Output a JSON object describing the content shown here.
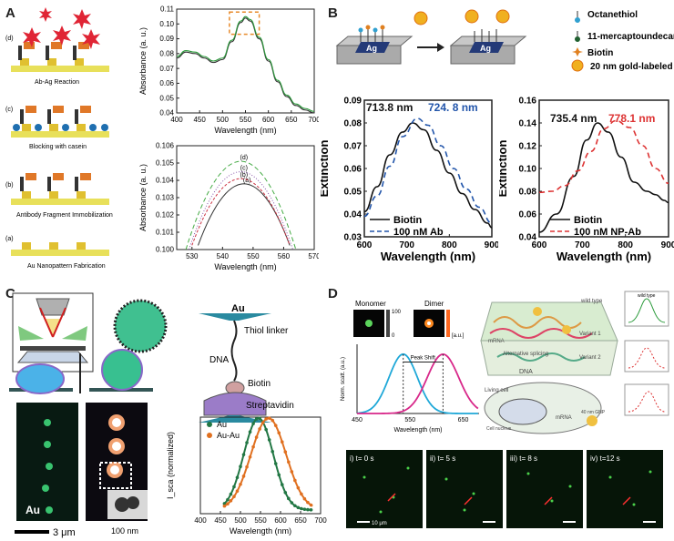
{
  "panels": {
    "A": {
      "label": "A",
      "steps": [
        {
          "tag": "(d)",
          "caption": "Ab-Ag Reaction"
        },
        {
          "tag": "(c)",
          "caption": "Blocking with casein"
        },
        {
          "tag": "(b)",
          "caption": "Antibody Fragment Immobilization"
        },
        {
          "tag": "(a)",
          "caption": "Au Nanopattern Fabrication"
        }
      ]
    },
    "B": {
      "label": "B",
      "schematic": {
        "substrate": "Ag"
      },
      "legend": [
        "Octanethiol",
        "11-mercaptoundecanoic acid",
        "Biotin",
        "20 nm gold-labeled anti-biotin"
      ]
    },
    "C": {
      "label": "C",
      "linker": {
        "top": "Au",
        "thiol": "Thiol linker",
        "dna": "DNA",
        "biotin": "Biotin",
        "strep": "Streptavidin"
      },
      "image_labels": {
        "au": "Au",
        "scale1": "3 μm",
        "scale2": "100 nm"
      }
    },
    "D": {
      "label": "D",
      "inset": {
        "monomer": "Monomer",
        "dimer": "Dimer",
        "scale_top": "100",
        "scale_bot": "0",
        "unit": "[a.u.]"
      },
      "right_labels": {
        "wild": "wild type",
        "splice": "Alternative splicing",
        "variant1": "Variant 1",
        "variant2": "Variant 2",
        "mrna": "mRNA",
        "dna": "DNA",
        "cell": "Living cell",
        "nucleus": "Cell nucleus",
        "gnp": "40 nm GNP",
        "mrna2": "mRNA"
      },
      "frames": [
        "i) t= 0 s",
        "ii) t= 5 s",
        "iii) t= 8 s",
        "iv) t=12 s"
      ],
      "frame_scale": "10 μm"
    }
  },
  "chart_data": [
    {
      "id": "A-top",
      "type": "line",
      "xlabel": "Wavelength (nm)",
      "ylabel": "Absorbance (a. u.)",
      "xlim": [
        400,
        700
      ],
      "ylim": [
        0.04,
        0.11
      ],
      "xticks": [
        400,
        450,
        500,
        550,
        600,
        650,
        700
      ],
      "yticks": [
        0.04,
        0.05,
        0.06,
        0.07,
        0.08,
        0.09,
        0.1,
        0.11
      ],
      "series": [
        {
          "name": "(a)",
          "color": "#333333",
          "x": [
            400,
            420,
            440,
            460,
            480,
            500,
            520,
            540,
            550,
            560,
            580,
            600,
            620,
            640,
            660,
            680,
            700
          ],
          "y": [
            0.077,
            0.081,
            0.08,
            0.077,
            0.074,
            0.076,
            0.088,
            0.101,
            0.104,
            0.102,
            0.09,
            0.075,
            0.061,
            0.051,
            0.045,
            0.042,
            0.04
          ]
        },
        {
          "name": "(d)",
          "color": "#2a9a3a",
          "x": [
            400,
            420,
            440,
            460,
            480,
            500,
            520,
            540,
            550,
            560,
            580,
            600,
            620,
            640,
            660,
            680,
            700
          ],
          "y": [
            0.078,
            0.082,
            0.081,
            0.078,
            0.075,
            0.077,
            0.089,
            0.102,
            0.105,
            0.103,
            0.091,
            0.076,
            0.062,
            0.052,
            0.046,
            0.043,
            0.041
          ]
        }
      ]
    },
    {
      "id": "A-bottom",
      "type": "line",
      "xlabel": "Wavelength (nm)",
      "ylabel": "Absorbance (a. u.)",
      "xlim": [
        525,
        570
      ],
      "ylim": [
        0.1,
        0.106
      ],
      "xticks": [
        530,
        540,
        550,
        560,
        570
      ],
      "yticks": [
        0.1,
        0.101,
        0.102,
        0.103,
        0.104,
        0.105,
        0.106
      ],
      "series": [
        {
          "name": "(a)",
          "color": "#333333",
          "peak": 0.1038,
          "center": 547,
          "halfwidth": 15.5
        },
        {
          "name": "(b)",
          "color": "#cc3344",
          "peak": 0.1041,
          "center": 546,
          "halfwidth": 16.5
        },
        {
          "name": "(c)",
          "color": "#8855aa",
          "peak": 0.1045,
          "center": 546,
          "halfwidth": 17
        },
        {
          "name": "(d)",
          "color": "#44aa44",
          "peak": 0.1051,
          "center": 546,
          "halfwidth": 18
        }
      ]
    },
    {
      "id": "B-left",
      "type": "line",
      "xlabel": "Wavelength (nm)",
      "ylabel": "Extinction",
      "xlim": [
        600,
        900
      ],
      "ylim": [
        0.03,
        0.09
      ],
      "xticks": [
        600,
        700,
        800,
        900
      ],
      "yticks": [
        0.03,
        0.04,
        0.05,
        0.06,
        0.07,
        0.08,
        0.09
      ],
      "annotations": [
        "713.8 nm",
        "724. 8 nm"
      ],
      "series": [
        {
          "name": "Biotin",
          "color": "#111111",
          "dash": false,
          "x": [
            600,
            630,
            660,
            690,
            713.8,
            740,
            770,
            800,
            830,
            860,
            890,
            900
          ],
          "y": [
            0.041,
            0.052,
            0.066,
            0.076,
            0.08,
            0.077,
            0.068,
            0.058,
            0.049,
            0.042,
            0.036,
            0.034
          ]
        },
        {
          "name": "100 nM Ab",
          "color": "#2255aa",
          "dash": true,
          "x": [
            600,
            630,
            660,
            690,
            724.8,
            750,
            780,
            810,
            840,
            870,
            900
          ],
          "y": [
            0.039,
            0.048,
            0.061,
            0.074,
            0.082,
            0.079,
            0.07,
            0.06,
            0.051,
            0.043,
            0.036
          ]
        }
      ]
    },
    {
      "id": "B-right",
      "type": "line",
      "xlabel": "Wavelength (nm)",
      "ylabel": "Extinction",
      "xlim": [
        600,
        900
      ],
      "ylim": [
        0.04,
        0.16
      ],
      "xticks": [
        600,
        700,
        800,
        900
      ],
      "yticks": [
        0.04,
        0.06,
        0.08,
        0.1,
        0.12,
        0.14,
        0.16
      ],
      "annotations": [
        "735.4 nm",
        "778.1 nm"
      ],
      "series": [
        {
          "name": "Biotin",
          "color": "#111111",
          "dash": false,
          "x": [
            600,
            640,
            680,
            710,
            735.4,
            760,
            790,
            820,
            850,
            870,
            890,
            900
          ],
          "y": [
            0.044,
            0.06,
            0.093,
            0.125,
            0.14,
            0.132,
            0.11,
            0.088,
            0.08,
            0.077,
            0.072,
            0.07
          ]
        },
        {
          "name": "100 nM NP-Ab",
          "color": "#dd3333",
          "dash": true,
          "x": [
            600,
            630,
            660,
            690,
            720,
            750,
            778.1,
            810,
            840,
            870,
            900
          ],
          "y": [
            0.079,
            0.08,
            0.085,
            0.098,
            0.115,
            0.135,
            0.142,
            0.136,
            0.12,
            0.1,
            0.087
          ]
        }
      ]
    },
    {
      "id": "C-plot",
      "type": "scatter",
      "xlabel": "Wavelength (nm)",
      "ylabel": "I_sca (normalized)",
      "xlim": [
        400,
        700
      ],
      "ylim": [
        0,
        1.05
      ],
      "xticks": [
        400,
        450,
        500,
        550,
        600,
        650,
        700
      ],
      "legend": [
        "Au",
        "Au-Au"
      ],
      "series": [
        {
          "name": "Au",
          "color": "#227744",
          "center": 545,
          "width": 52,
          "x0": 460,
          "x1": 680
        },
        {
          "name": "Au-Au",
          "color": "#e07020",
          "center": 570,
          "width": 62,
          "x0": 460,
          "x1": 680
        }
      ]
    },
    {
      "id": "D-inset",
      "type": "line",
      "xlabel": "Wavelength (nm)",
      "ylabel": "Norm. scatt. (a.u.)",
      "xlim": [
        450,
        680
      ],
      "ylim": [
        0,
        1.05
      ],
      "xticks": [
        450,
        550,
        650
      ],
      "annotations": [
        "Peak Shift"
      ],
      "series": [
        {
          "name": "Monomer",
          "color": "#1fa8d8",
          "center": 537,
          "width": 38
        },
        {
          "name": "Dimer",
          "color": "#d8288a",
          "center": 612,
          "width": 42
        }
      ]
    }
  ]
}
